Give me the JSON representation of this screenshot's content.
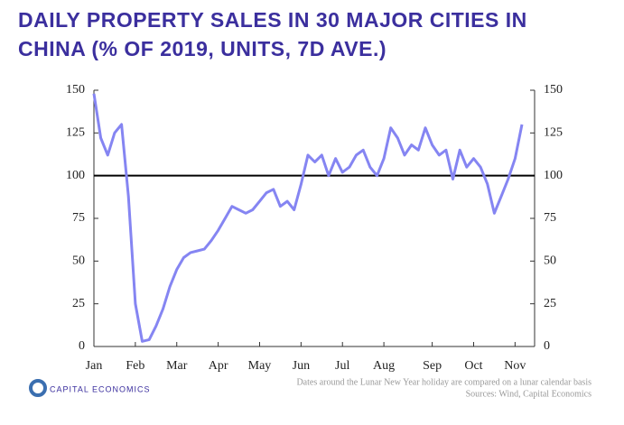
{
  "chart_data": {
    "type": "line",
    "title": "DAILY PROPERTY SALES IN 30 MAJOR CITIES IN CHINA (% OF 2019, UNITS, 7D AVE.)",
    "categories": [
      "Jan",
      null,
      null,
      null,
      null,
      null,
      "Feb",
      null,
      null,
      null,
      null,
      null,
      "Mar",
      null,
      null,
      null,
      null,
      null,
      "Apr",
      null,
      null,
      null,
      null,
      null,
      "May",
      null,
      null,
      null,
      null,
      null,
      "Jun",
      null,
      null,
      null,
      null,
      null,
      "Jul",
      null,
      null,
      null,
      null,
      null,
      "Aug",
      null,
      null,
      null,
      null,
      null,
      null,
      "Sep",
      null,
      null,
      null,
      null,
      null,
      "Oct",
      null,
      null,
      null,
      null,
      null,
      "Nov",
      null
    ],
    "series": [
      {
        "name": "Daily property sales",
        "color": "#8585f2",
        "values": [
          148,
          122,
          112,
          125,
          130,
          88,
          25,
          3,
          4,
          12,
          22,
          35,
          45,
          52,
          55,
          56,
          57,
          62,
          68,
          75,
          82,
          80,
          78,
          80,
          85,
          90,
          92,
          82,
          85,
          80,
          95,
          112,
          108,
          112,
          100,
          110,
          102,
          105,
          112,
          115,
          105,
          100,
          110,
          128,
          122,
          112,
          118,
          115,
          128,
          118,
          112,
          115,
          98,
          115,
          105,
          110,
          105,
          95,
          78,
          88,
          98,
          110,
          130
        ]
      }
    ],
    "ylim": [
      0,
      150
    ],
    "yticks": [
      0,
      25,
      50,
      75,
      100,
      125,
      150
    ],
    "reference_line": 100,
    "brand": "CAPITAL ECONOMICS",
    "note": "Dates around the Lunar New Year holiday are compared on a lunar calendar basis",
    "source": "Sources: Wind, Capital Economics"
  }
}
